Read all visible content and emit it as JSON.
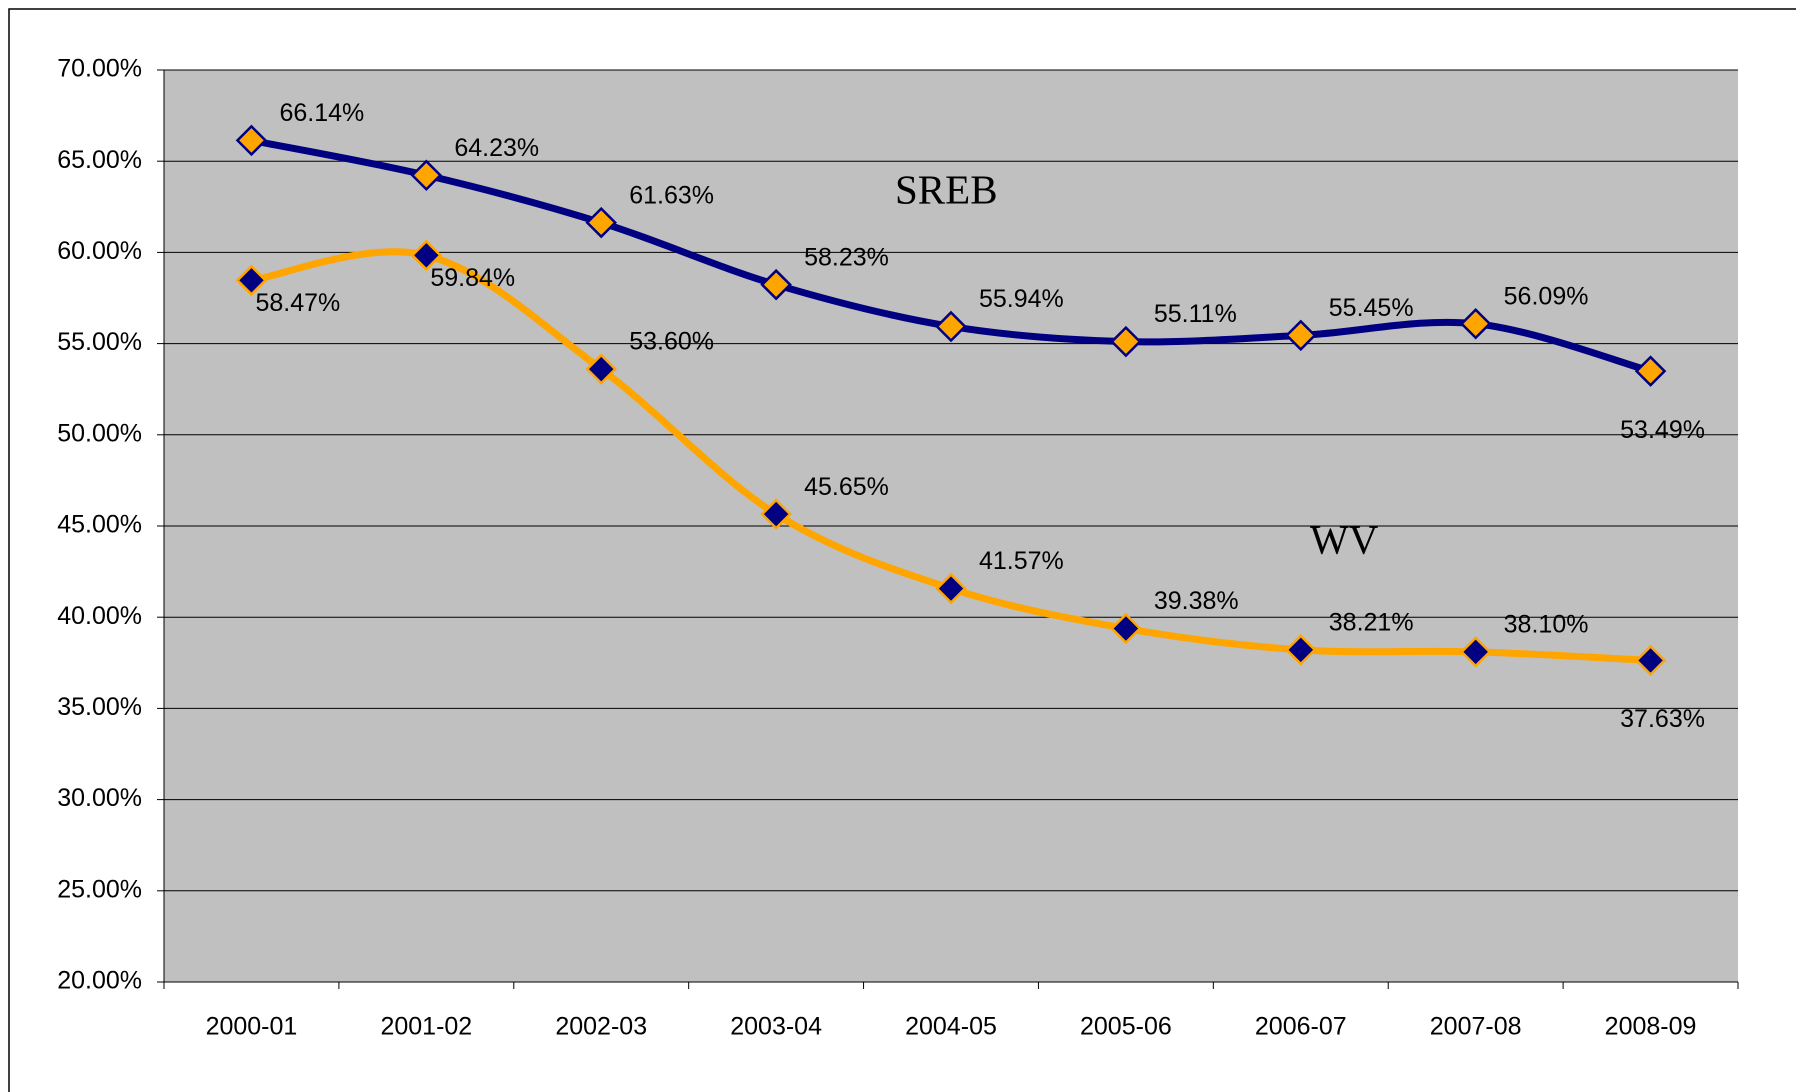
{
  "chart_data": {
    "type": "line",
    "categories": [
      "2000-01",
      "2001-02",
      "2002-03",
      "2003-04",
      "2004-05",
      "2005-06",
      "2006-07",
      "2007-08",
      "2008-09"
    ],
    "series": [
      {
        "name": "SREB",
        "color": "#000080",
        "marker_color": "#ffa500",
        "values": [
          66.14,
          64.23,
          61.63,
          58.23,
          55.94,
          55.11,
          55.45,
          56.09,
          53.49
        ],
        "value_labels": [
          "66.14%",
          "64.23%",
          "61.63%",
          "58.23%",
          "55.94%",
          "55.11%",
          "55.45%",
          "56.09%",
          "53.49%"
        ]
      },
      {
        "name": "WV",
        "color": "#ffa500",
        "marker_color": "#000080",
        "values": [
          58.47,
          59.84,
          53.6,
          45.65,
          41.57,
          39.38,
          38.21,
          38.1,
          37.63
        ],
        "value_labels": [
          "58.47%",
          "59.84%",
          "53.60%",
          "45.65%",
          "41.57%",
          "39.38%",
          "38.21%",
          "38.10%",
          "37.63%"
        ]
      }
    ],
    "ylim": [
      20,
      70
    ],
    "yticks": [
      {
        "value": 20,
        "label": "20.00%"
      },
      {
        "value": 25,
        "label": "25.00%"
      },
      {
        "value": 30,
        "label": "30.00%"
      },
      {
        "value": 35,
        "label": "35.00%"
      },
      {
        "value": 40,
        "label": "40.00%"
      },
      {
        "value": 45,
        "label": "45.00%"
      },
      {
        "value": 50,
        "label": "50.00%"
      },
      {
        "value": 55,
        "label": "55.00%"
      },
      {
        "value": 60,
        "label": "60.00%"
      },
      {
        "value": 65,
        "label": "65.00%"
      },
      {
        "value": 70,
        "label": "70.00%"
      }
    ],
    "grid": true,
    "plot_background": "#c0c0c0"
  }
}
